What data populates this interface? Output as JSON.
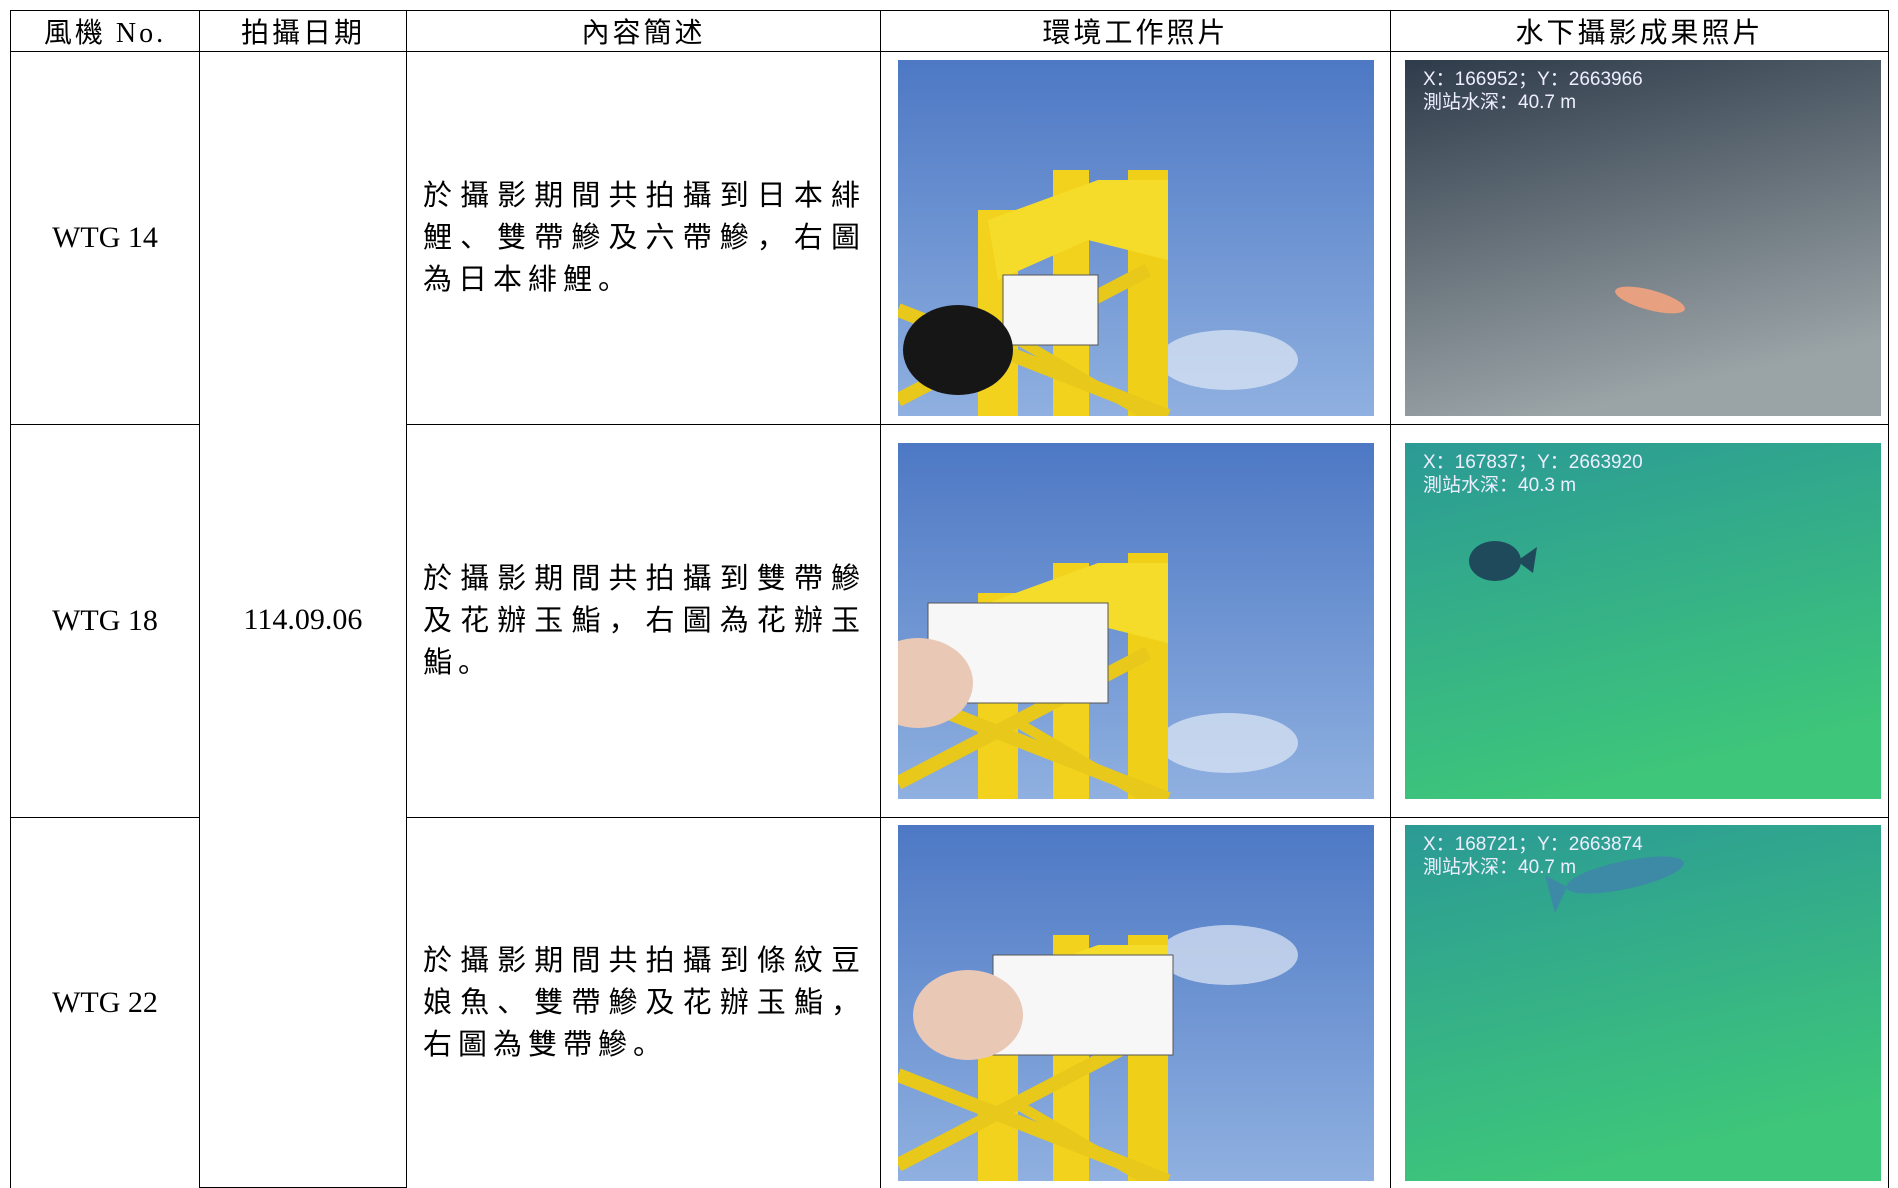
{
  "table": {
    "headers": [
      "風機 No.",
      "拍攝日期",
      "內容簡述",
      "環境工作照片",
      "水下攝影成果照片"
    ],
    "date": "114.09.06",
    "rows": [
      {
        "turbine": "WTG 14",
        "description": "於攝影期間共拍攝到日本緋鯉、雙帶鰺及六帶鰺，右圖為日本緋鯉。",
        "photo_overlay": {
          "coordinates": "X：166952；Y：2663966",
          "depth": "測站水深：40.7 m"
        }
      },
      {
        "turbine": "WTG 18",
        "description": "於攝影期間共拍攝到雙帶鰺及花辦玉鮨，右圖為花辦玉鮨。",
        "photo_overlay": {
          "coordinates": "X：167837；Y：2663920",
          "depth": "測站水深：40.3 m"
        }
      },
      {
        "turbine": "WTG 22",
        "description": "於攝影期間共拍攝到條紋豆娘魚、雙帶鰺及花辦玉鮨，右圖為雙帶鰺。",
        "photo_overlay": {
          "coordinates": "X：168721；Y：2663874",
          "depth": "測站水深：40.7 m"
        }
      }
    ]
  }
}
